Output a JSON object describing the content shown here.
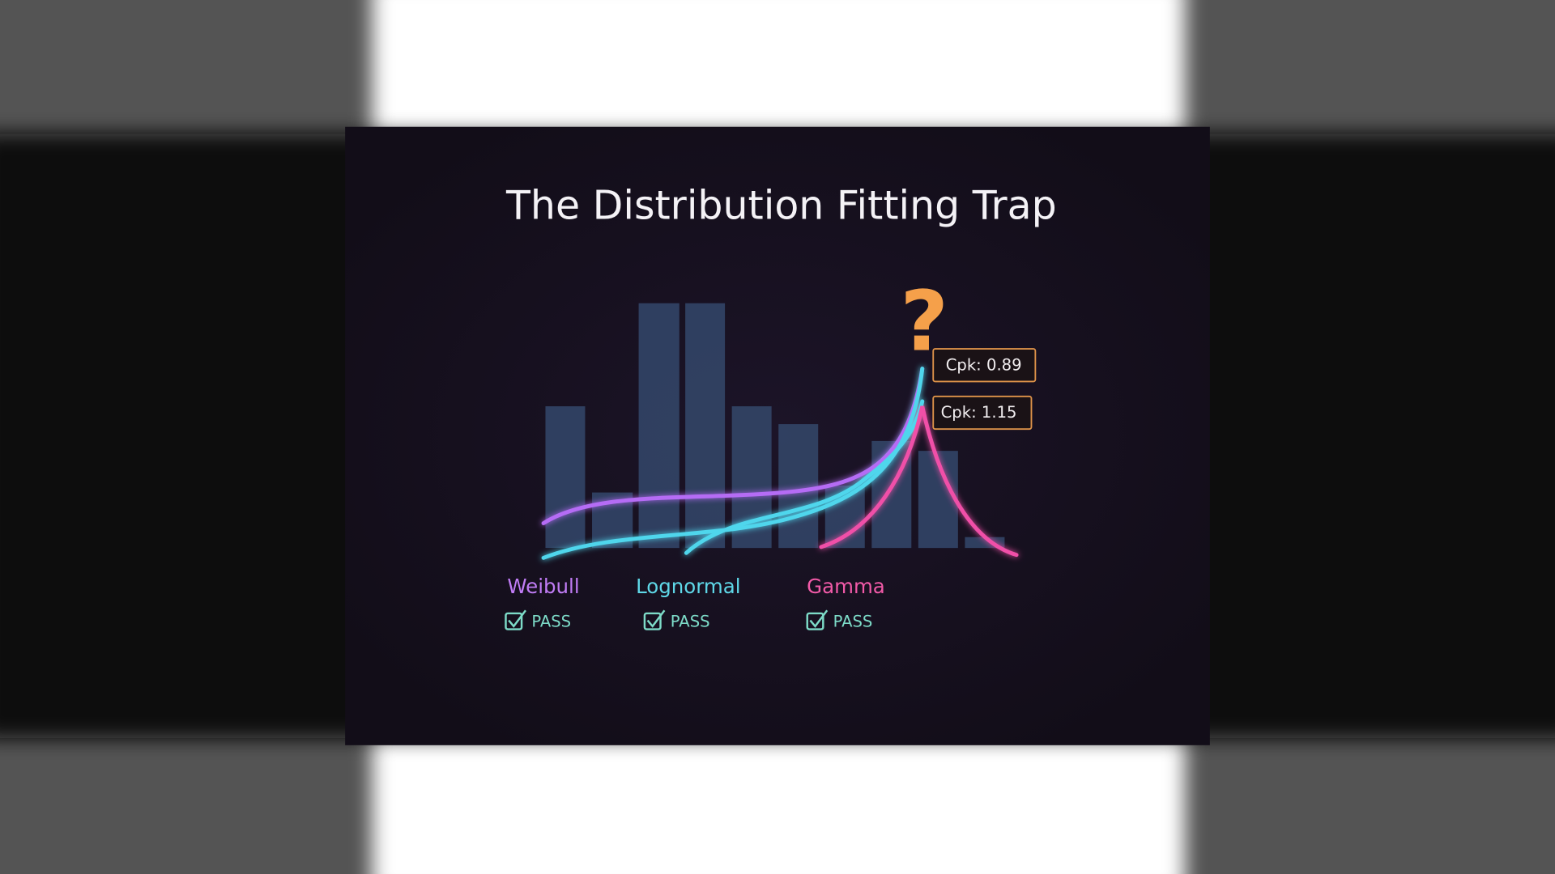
{
  "title": "The Distribution Fitting Trap",
  "question_mark": "?",
  "callouts": [
    "Cpk: 0.89",
    "Cpk: 1.15"
  ],
  "fits": [
    {
      "name": "Weibull",
      "result": "PASS"
    },
    {
      "name": "Lognormal",
      "result": "PASS"
    },
    {
      "name": "Gamma",
      "result": "PASS"
    }
  ]
}
